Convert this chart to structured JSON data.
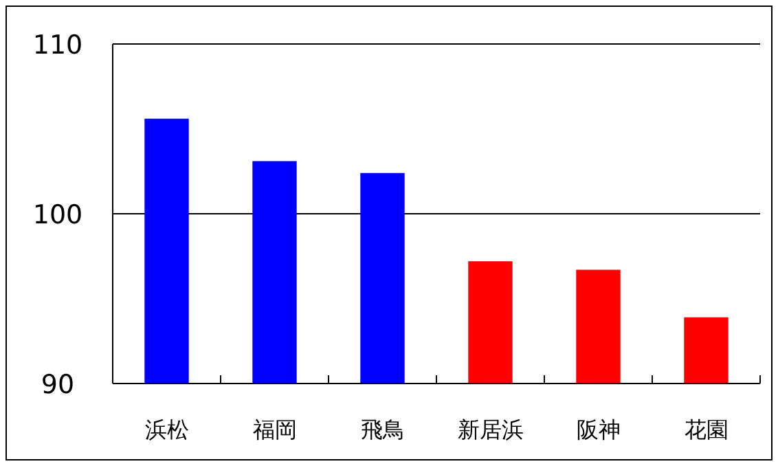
{
  "chart_data": {
    "type": "bar",
    "categories": [
      "浜松",
      "福岡",
      "飛鳥",
      "新居浜",
      "阪神",
      "花園"
    ],
    "values": [
      105.6,
      103.1,
      102.4,
      97.2,
      96.7,
      93.9
    ],
    "colors": [
      "#0000ff",
      "#0000ff",
      "#0000ff",
      "#ff0000",
      "#ff0000",
      "#ff0000"
    ],
    "ylim": [
      90,
      110
    ],
    "yticks": [
      90,
      100,
      110
    ],
    "grid": "y"
  }
}
